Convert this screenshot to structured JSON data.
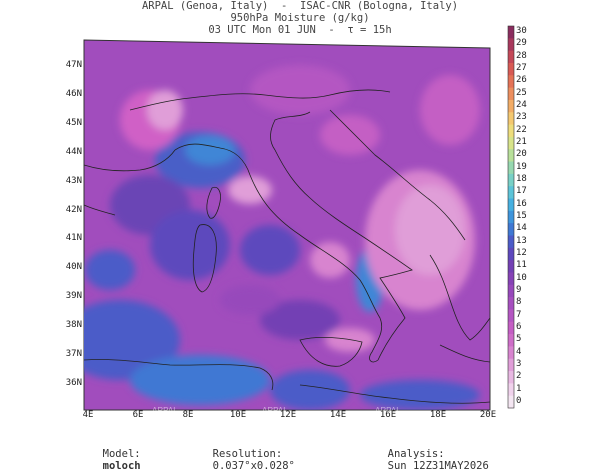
{
  "header": {
    "line1": "ARPAL (Genoa, Italy)  -  ISAC-CNR (Bologna, Italy)",
    "line2": "950hPa Moisture (g/kg)",
    "line3": "03 UTC Mon 01 JUN  -  τ = 15h"
  },
  "map": {
    "lat_labels": [
      "47N",
      "46N",
      "45N",
      "44N",
      "43N",
      "42N",
      "41N",
      "40N",
      "39N",
      "38N",
      "37N",
      "36N"
    ],
    "lon_labels": [
      "4E",
      "6E",
      "8E",
      "10E",
      "12E",
      "14E",
      "16E",
      "18E",
      "20E"
    ],
    "watermark": "ARPAL"
  },
  "colorbar": {
    "labels": [
      "30",
      "29",
      "28",
      "27",
      "26",
      "25",
      "24",
      "23",
      "22",
      "21",
      "20",
      "19",
      "18",
      "17",
      "16",
      "15",
      "14",
      "13",
      "12",
      "11",
      "10",
      "9",
      "8",
      "7",
      "6",
      "5",
      "4",
      "3",
      "2",
      "1",
      "0"
    ],
    "colors": {
      "0": "#f4e6f2",
      "1": "#f0d2ec",
      "2": "#e8b8e2",
      "3": "#e09ed8",
      "4": "#d884cf",
      "5": "#ce6dc8",
      "6": "#c45ec4",
      "7": "#b456c2",
      "8": "#a64fbf",
      "9": "#9748bb",
      "10": "#8642b6",
      "11": "#7340b4",
      "12": "#5d48bd",
      "13": "#4b5bc8",
      "14": "#3f78d3",
      "15": "#3e95dc",
      "16": "#46b0e0",
      "17": "#5cc4d8",
      "18": "#78d0c6",
      "19": "#96d8b0",
      "20": "#b8e09a",
      "21": "#d8e48a",
      "22": "#eedd7c",
      "23": "#f4c870",
      "24": "#f2ac66",
      "25": "#ec8e5e",
      "26": "#e47256",
      "27": "#d85a54",
      "28": "#c44858",
      "29": "#a8385c",
      "30": "#8a2c5e"
    }
  },
  "footer": {
    "model_label": "Model:",
    "model_name": "moloch",
    "resolution_label": "Resolution:",
    "resolution_value": "0.037°x0.028°",
    "analysis_label": "Analysis:",
    "analysis_value": "Sun 12Z31MAY2026"
  }
}
